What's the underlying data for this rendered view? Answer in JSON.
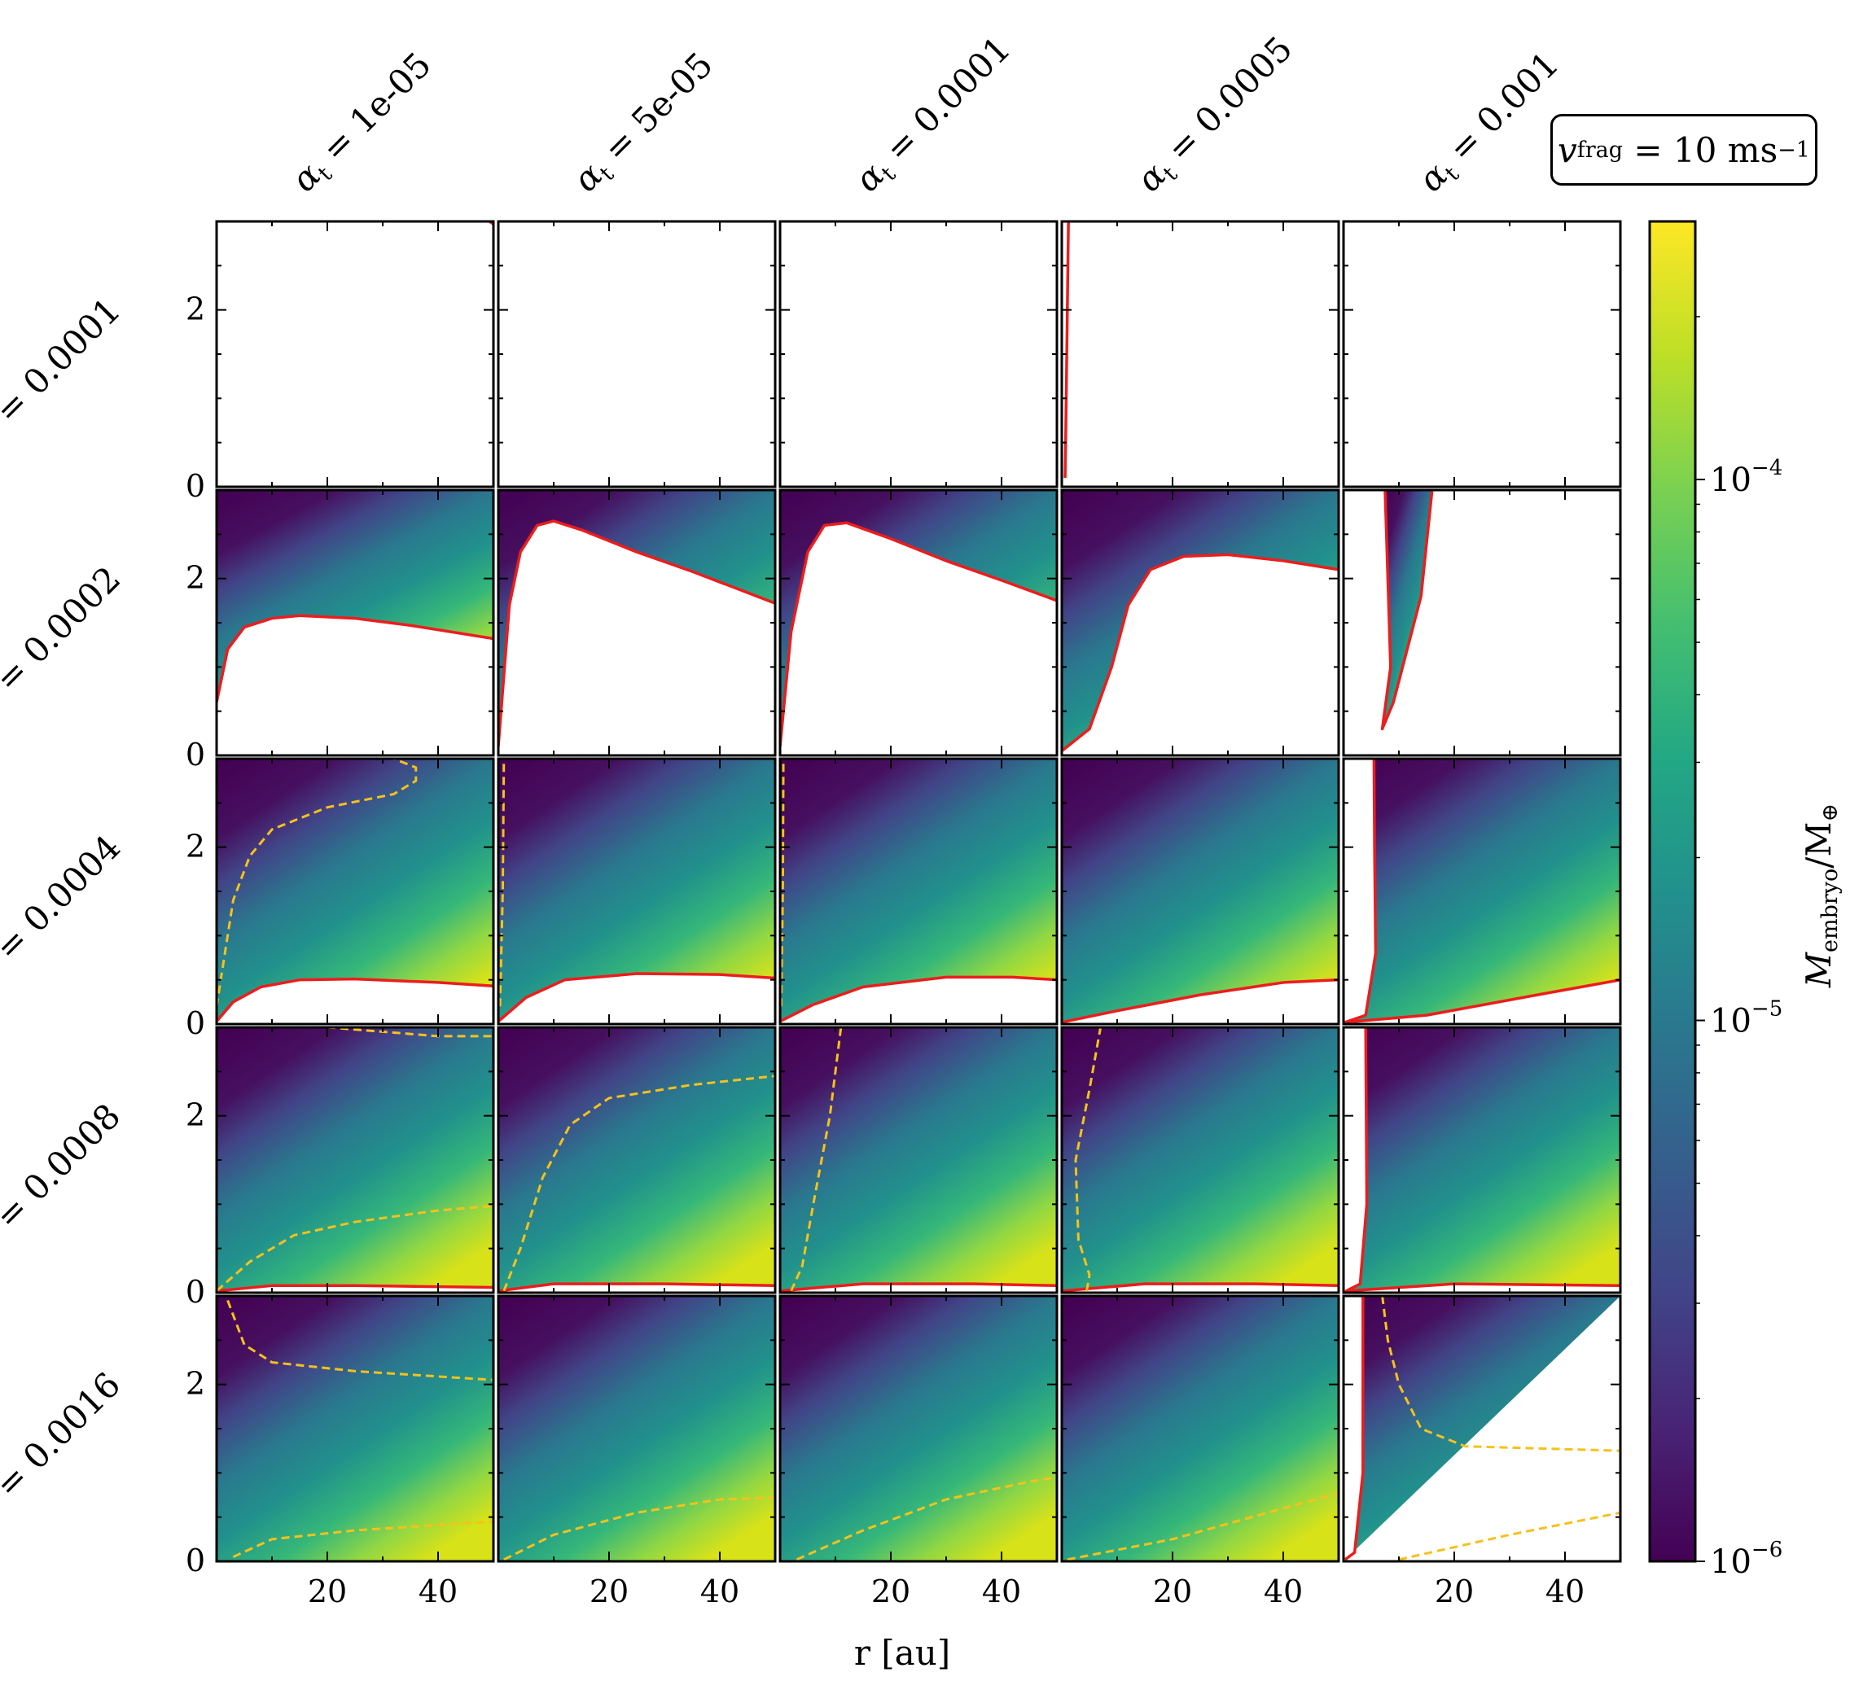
{
  "figure": {
    "label_box": {
      "symbol": "v",
      "subscript": "frag",
      "value": "= 10",
      "unit": "ms",
      "unit_exp": "−1"
    },
    "colorbar": {
      "label_main": "M",
      "label_sub": "embryo",
      "label_tail": "/M",
      "label_tail_sub": "⊕",
      "scale": "log",
      "range": [
        1e-06,
        0.0003
      ],
      "ticks": [
        {
          "value": 1e-06,
          "base": "10",
          "exp": "−6"
        },
        {
          "value": 1e-05,
          "base": "10",
          "exp": "−5"
        },
        {
          "value": 0.0001,
          "base": "10",
          "exp": "−4"
        }
      ],
      "colormap": "viridis"
    }
  },
  "chart_data": {
    "type": "heatmap",
    "xlabel": "r [au]",
    "x_ticks": [
      "20",
      "40"
    ],
    "xlim": [
      0,
      50
    ],
    "ylim": [
      0,
      3
    ],
    "y_ticks": [
      "0",
      "2"
    ],
    "columns": [
      {
        "label": "α",
        "sub": "t",
        "value": "= 1e-05"
      },
      {
        "label": "α",
        "sub": "t",
        "value": "= 5e-05"
      },
      {
        "label": "α",
        "sub": "t",
        "value": "= 0.0001"
      },
      {
        "label": "α",
        "sub": "t",
        "value": "= 0.0005"
      },
      {
        "label": "α",
        "sub": "t",
        "value": "= 0.001"
      }
    ],
    "rows": [
      {
        "label": "= 0.0001"
      },
      {
        "label": "= 0.0002"
      },
      {
        "label": "= 0.0004"
      },
      {
        "label": "= 0.0008"
      },
      {
        "label": "= 0.0016"
      }
    ],
    "red_boundary_color": "#ee1c1c",
    "yellow_contour_color": "#f4c21c",
    "panels": [
      [
        {
          "filled": false,
          "red": [
            [
              49.3,
              3.0
            ],
            [
              50,
              2.97
            ]
          ],
          "yellow": []
        },
        {
          "filled": false,
          "red": [],
          "yellow": []
        },
        {
          "filled": false,
          "red": [],
          "yellow": []
        },
        {
          "filled": false,
          "red": [
            [
              1.2,
              3.0
            ],
            [
              1.0,
              2.0
            ],
            [
              0.8,
              1.0
            ],
            [
              0.6,
              0.1
            ]
          ],
          "yellow": []
        },
        {
          "filled": false,
          "red": [],
          "yellow": []
        }
      ],
      [
        {
          "filled": "above",
          "red": [
            [
              0,
              0.6
            ],
            [
              2,
              1.2
            ],
            [
              5,
              1.45
            ],
            [
              10,
              1.55
            ],
            [
              15,
              1.58
            ],
            [
              25,
              1.55
            ],
            [
              35,
              1.47
            ],
            [
              50,
              1.32
            ]
          ],
          "yellow": []
        },
        {
          "filled": "above",
          "red": [
            [
              0,
              0.1
            ],
            [
              2,
              1.7
            ],
            [
              4,
              2.3
            ],
            [
              7,
              2.6
            ],
            [
              10,
              2.65
            ],
            [
              15,
              2.55
            ],
            [
              25,
              2.3
            ],
            [
              35,
              2.08
            ],
            [
              50,
              1.72
            ]
          ],
          "yellow": []
        },
        {
          "filled": "above",
          "red": [
            [
              0,
              0.1
            ],
            [
              2,
              1.4
            ],
            [
              5,
              2.3
            ],
            [
              8,
              2.6
            ],
            [
              12,
              2.63
            ],
            [
              20,
              2.45
            ],
            [
              30,
              2.2
            ],
            [
              40,
              1.98
            ],
            [
              50,
              1.75
            ]
          ],
          "yellow": []
        },
        {
          "filled": "above",
          "red": [
            [
              0,
              0.05
            ],
            [
              5,
              0.3
            ],
            [
              9,
              1.0
            ],
            [
              12,
              1.7
            ],
            [
              16,
              2.1
            ],
            [
              22,
              2.25
            ],
            [
              30,
              2.27
            ],
            [
              40,
              2.2
            ],
            [
              50,
              2.1
            ]
          ],
          "yellow": []
        },
        {
          "filled": "wedge",
          "red": [
            [
              7.5,
              3.0
            ],
            [
              8.0,
              2.0
            ],
            [
              8.5,
              1.0
            ],
            [
              7.0,
              0.3
            ],
            [
              9.0,
              0.6
            ],
            [
              14.0,
              1.8
            ],
            [
              16.0,
              3.0
            ]
          ],
          "yellow": []
        }
      ],
      [
        {
          "filled": "above",
          "red": [
            [
              0,
              0.03
            ],
            [
              3,
              0.25
            ],
            [
              8,
              0.42
            ],
            [
              15,
              0.5
            ],
            [
              25,
              0.51
            ],
            [
              40,
              0.47
            ],
            [
              50,
              0.43
            ]
          ],
          "yellow": [
            [
              0,
              0.2
            ],
            [
              3,
              1.4
            ],
            [
              6,
              1.9
            ],
            [
              10,
              2.2
            ],
            [
              20,
              2.45
            ],
            [
              32,
              2.6
            ],
            [
              36,
              2.75
            ],
            [
              36,
              2.9
            ],
            [
              32,
              3.0
            ]
          ]
        },
        {
          "filled": "above",
          "red": [
            [
              0,
              0.03
            ],
            [
              5,
              0.3
            ],
            [
              12,
              0.5
            ],
            [
              25,
              0.57
            ],
            [
              40,
              0.56
            ],
            [
              50,
              0.52
            ]
          ],
          "yellow": [
            [
              0.3,
              0.2
            ],
            [
              0.8,
              1.5
            ],
            [
              1.0,
              3.0
            ]
          ]
        },
        {
          "filled": "above",
          "red": [
            [
              0,
              0.03
            ],
            [
              6,
              0.22
            ],
            [
              15,
              0.42
            ],
            [
              30,
              0.53
            ],
            [
              42,
              0.53
            ],
            [
              50,
              0.5
            ]
          ],
          "yellow": [
            [
              0.2,
              0.2
            ],
            [
              0.5,
              1.5
            ],
            [
              0.6,
              3.0
            ]
          ]
        },
        {
          "filled": "above",
          "red": [
            [
              0,
              0.02
            ],
            [
              10,
              0.15
            ],
            [
              25,
              0.33
            ],
            [
              40,
              0.47
            ],
            [
              50,
              0.5
            ]
          ],
          "yellow": []
        },
        {
          "filled": "right",
          "red": [
            [
              5.5,
              3.0
            ],
            [
              5.6,
              2.0
            ],
            [
              5.8,
              0.8
            ],
            [
              4.0,
              0.1
            ],
            [
              0.3,
              0.02
            ],
            [
              15,
              0.1
            ],
            [
              35,
              0.33
            ],
            [
              50,
              0.5
            ]
          ],
          "yellow": []
        }
      ],
      [
        {
          "filled": "above",
          "red": [
            [
              0,
              0.02
            ],
            [
              10,
              0.08
            ],
            [
              25,
              0.08
            ],
            [
              50,
              0.06
            ]
          ],
          "yellow": [
            [
              0,
              0.02
            ],
            [
              6,
              0.35
            ],
            [
              14,
              0.65
            ],
            [
              25,
              0.8
            ],
            [
              40,
              0.93
            ],
            [
              50,
              0.98
            ]
          ],
          "yellow2": [
            [
              20,
              3.0
            ],
            [
              40,
              2.9
            ],
            [
              50,
              2.9
            ]
          ]
        },
        {
          "filled": "above",
          "red": [
            [
              0,
              0.02
            ],
            [
              10,
              0.1
            ],
            [
              30,
              0.1
            ],
            [
              50,
              0.08
            ]
          ],
          "yellow": [
            [
              1,
              0.02
            ],
            [
              4,
              0.5
            ],
            [
              8,
              1.3
            ],
            [
              13,
              1.9
            ],
            [
              20,
              2.2
            ],
            [
              35,
              2.35
            ],
            [
              50,
              2.45
            ]
          ]
        },
        {
          "filled": "above",
          "red": [
            [
              0,
              0.02
            ],
            [
              15,
              0.1
            ],
            [
              35,
              0.1
            ],
            [
              50,
              0.08
            ]
          ],
          "yellow": [
            [
              2,
              0.02
            ],
            [
              4,
              0.3
            ],
            [
              6,
              1.0
            ],
            [
              9,
              2.0
            ],
            [
              11,
              3.0
            ]
          ]
        },
        {
          "filled": "above",
          "red": [
            [
              0,
              0.02
            ],
            [
              15,
              0.1
            ],
            [
              35,
              0.1
            ],
            [
              50,
              0.08
            ]
          ],
          "yellow": [
            [
              4.5,
              0.02
            ],
            [
              5,
              0.2
            ],
            [
              3,
              0.6
            ],
            [
              2.5,
              1.5
            ],
            [
              5,
              2.3
            ],
            [
              7,
              3.0
            ]
          ]
        },
        {
          "filled": "right",
          "red": [
            [
              4.0,
              3.0
            ],
            [
              4.2,
              1.0
            ],
            [
              3.0,
              0.1
            ],
            [
              0.5,
              0.02
            ],
            [
              20,
              0.1
            ],
            [
              50,
              0.08
            ]
          ],
          "yellow": []
        }
      ],
      [
        {
          "filled": "above",
          "red": [],
          "yellow": [
            [
              2,
              2.95
            ],
            [
              5,
              2.45
            ],
            [
              10,
              2.25
            ],
            [
              25,
              2.15
            ],
            [
              50,
              2.05
            ]
          ],
          "yellow2": [
            [
              3,
              0.05
            ],
            [
              10,
              0.25
            ],
            [
              25,
              0.35
            ],
            [
              50,
              0.45
            ]
          ]
        },
        {
          "filled": "above",
          "red": [],
          "yellow": [
            [
              1,
              0.02
            ],
            [
              10,
              0.3
            ],
            [
              25,
              0.55
            ],
            [
              40,
              0.7
            ],
            [
              50,
              0.72
            ]
          ]
        },
        {
          "filled": "above",
          "red": [],
          "yellow": [
            [
              3,
              0.02
            ],
            [
              15,
              0.35
            ],
            [
              30,
              0.7
            ],
            [
              45,
              0.9
            ],
            [
              50,
              0.95
            ]
          ]
        },
        {
          "filled": "above",
          "red": [],
          "yellow": [
            [
              1,
              0.02
            ],
            [
              20,
              0.25
            ],
            [
              40,
              0.6
            ],
            [
              50,
              0.77
            ]
          ]
        },
        {
          "filled": "right",
          "red": [
            [
              3.5,
              3.0
            ],
            [
              3.5,
              1.0
            ],
            [
              2.0,
              0.1
            ],
            [
              0.3,
              0.02
            ]
          ],
          "yellow": [
            [
              7,
              3.0
            ],
            [
              8,
              2.5
            ],
            [
              10,
              2.0
            ],
            [
              14,
              1.5
            ],
            [
              22,
              1.3
            ],
            [
              50,
              1.25
            ]
          ],
          "yellow2": [
            [
              10,
              0.02
            ],
            [
              30,
              0.3
            ],
            [
              50,
              0.55
            ]
          ]
        }
      ]
    ]
  }
}
